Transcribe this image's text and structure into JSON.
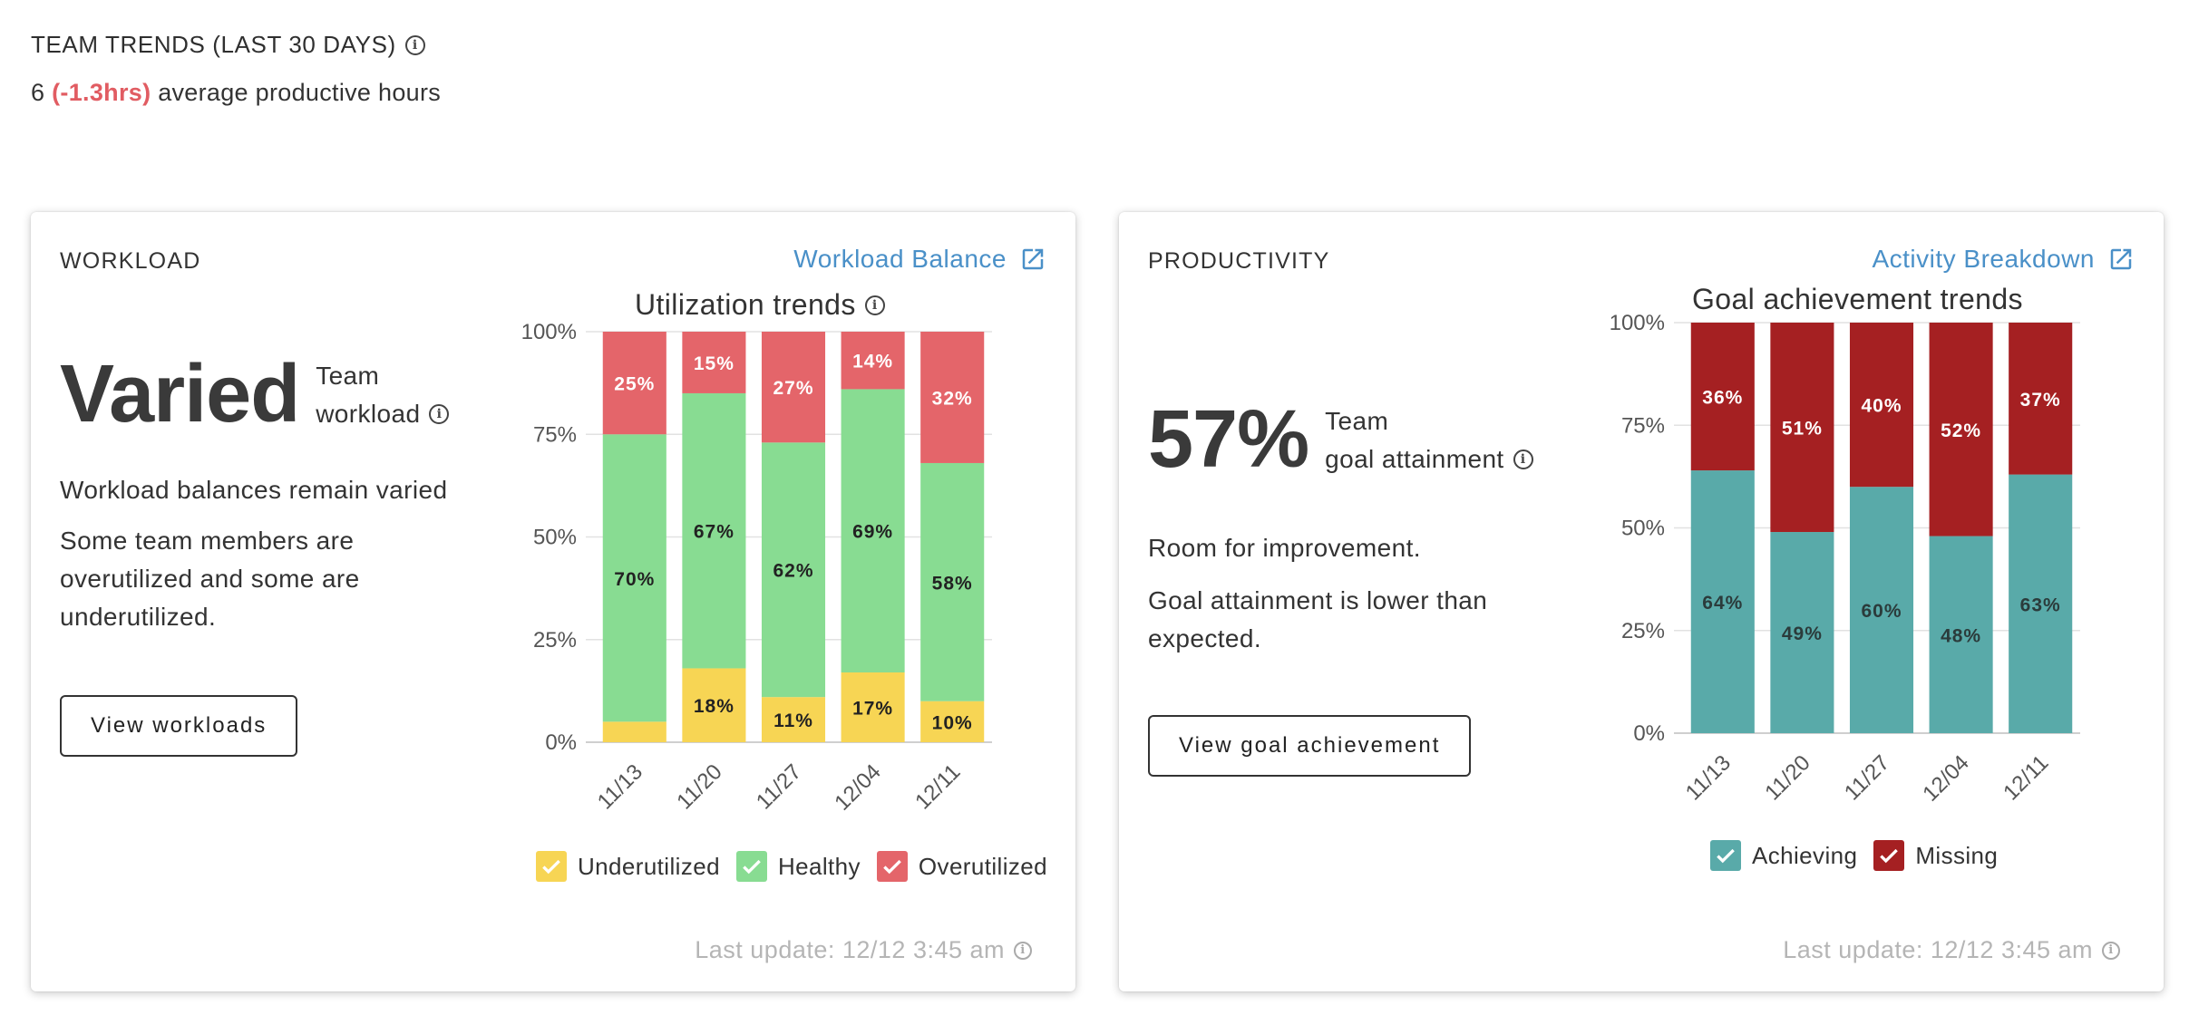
{
  "header": {
    "title": "TEAM TRENDS (LAST 30 DAYS)",
    "summary_value": "6",
    "summary_delta": "(-1.3hrs)",
    "summary_text": "average productive hours"
  },
  "workload": {
    "title": "WORKLOAD",
    "link_label": "Workload Balance",
    "big_value": "Varied",
    "big_label_line1": "Team",
    "big_label_line2": "workload",
    "desc1": "Workload balances remain varied",
    "desc2": "Some team members are overutilized and some are underutilized.",
    "button_label": "View workloads",
    "chart_title": "Utilization trends",
    "last_update": "Last update: 12/12 3:45 am"
  },
  "productivity": {
    "title": "PRODUCTIVITY",
    "link_label": "Activity Breakdown",
    "big_value": "57%",
    "big_label_line1": "Team",
    "big_label_line2": "goal attainment",
    "desc1": "Room for improvement.",
    "desc2": "Goal attainment is lower than expected.",
    "button_label": "View goal achievement",
    "chart_title": "Goal achievement trends",
    "last_update": "Last update: 12/12 3:45 am"
  },
  "colors": {
    "accent_link": "#4a90c8",
    "negative": "#e15c62",
    "underutilized": "#f7d554",
    "healthy": "#88dc92",
    "overutilized": "#e4656a",
    "achieving": "#59aaa9",
    "missing": "#a52022"
  },
  "chart_data": [
    {
      "type": "bar",
      "stacked": true,
      "title": "Utilization trends",
      "categories": [
        "11/13",
        "11/20",
        "11/27",
        "12/04",
        "12/11"
      ],
      "series": [
        {
          "name": "Underutilized",
          "values": [
            5,
            18,
            11,
            17,
            10
          ],
          "labels": [
            "",
            "18%",
            "11%",
            "17%",
            "10%"
          ],
          "color": "#f7d554",
          "label_color": "#222222"
        },
        {
          "name": "Healthy",
          "values": [
            70,
            67,
            62,
            69,
            58
          ],
          "labels": [
            "70%",
            "67%",
            "62%",
            "69%",
            "58%"
          ],
          "color": "#88dc92",
          "label_color": "#222222"
        },
        {
          "name": "Overutilized",
          "values": [
            25,
            15,
            27,
            14,
            32
          ],
          "labels": [
            "25%",
            "15%",
            "27%",
            "14%",
            "32%"
          ],
          "color": "#e4656a",
          "label_color": "#ffffff"
        }
      ],
      "yticks": [
        "0%",
        "25%",
        "50%",
        "75%",
        "100%"
      ],
      "ylim": [
        0,
        100
      ],
      "grid": true,
      "legend": "bottom"
    },
    {
      "type": "bar",
      "stacked": true,
      "title": "Goal achievement trends",
      "categories": [
        "11/13",
        "11/20",
        "11/27",
        "12/04",
        "12/11"
      ],
      "series": [
        {
          "name": "Achieving",
          "values": [
            64,
            49,
            60,
            48,
            63
          ],
          "labels": [
            "64%",
            "49%",
            "60%",
            "48%",
            "63%"
          ],
          "color": "#59aaa9",
          "label_color": "#2b3b3b"
        },
        {
          "name": "Missing",
          "values": [
            36,
            51,
            40,
            52,
            37
          ],
          "labels": [
            "36%",
            "51%",
            "40%",
            "52%",
            "37%"
          ],
          "color": "#a52022",
          "label_color": "#ffffff"
        }
      ],
      "yticks": [
        "0%",
        "25%",
        "50%",
        "75%",
        "100%"
      ],
      "ylim": [
        0,
        100
      ],
      "grid": true,
      "legend": "bottom"
    }
  ]
}
